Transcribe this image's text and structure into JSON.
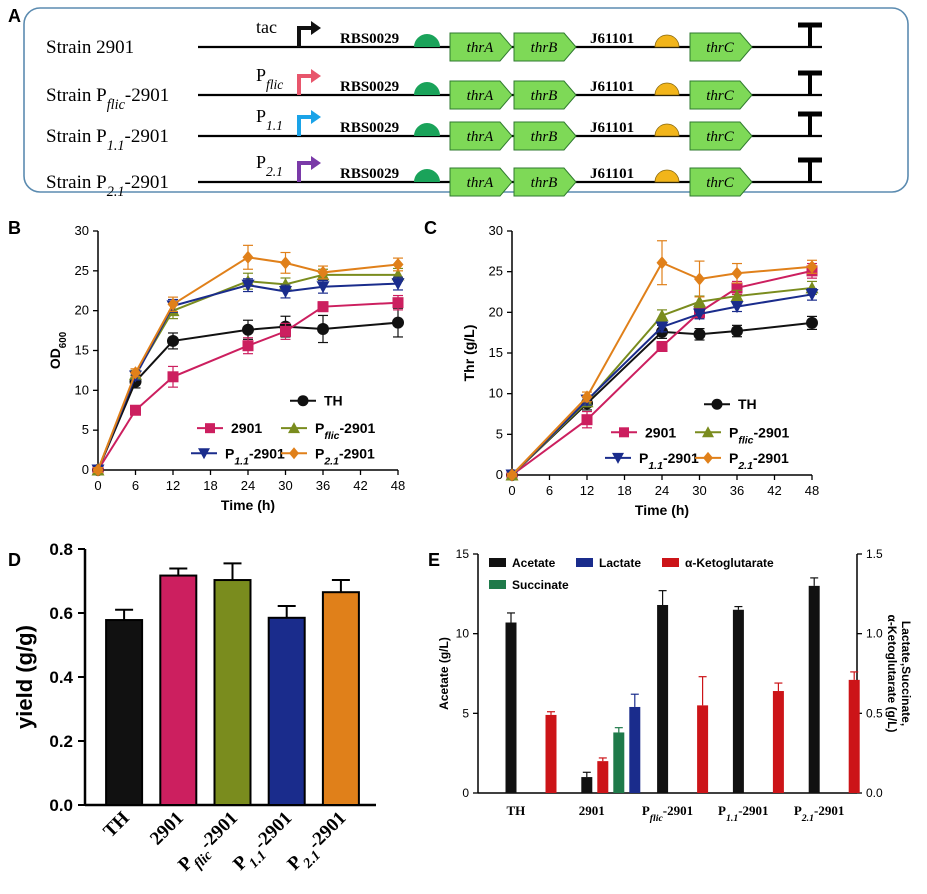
{
  "colors": {
    "TH": "#111111",
    "2901": "#cc1f5f",
    "Pflic": "#7a8c1e",
    "P11": "#1a2c8c",
    "P21": "#e0801a",
    "acetate": "#111111",
    "lactate": "#1a2c8c",
    "akg": "#cc1418",
    "succinate": "#1f7a4a",
    "rbs": "#1aa35a",
    "rbs2": "#f2b51a",
    "gene": "#7ed957",
    "tac": "#111111",
    "pflic_arrow": "#e8566c",
    "p11_arrow": "#1aa3e8",
    "p21_arrow": "#7a3aa8",
    "panel_border": "#5b8bb0"
  },
  "panelA": {
    "label": "A",
    "strains": [
      {
        "pre": "Strain ",
        "sub": "",
        "post": "2901",
        "promoter": "tac",
        "promoter_sub": "",
        "arrow": "tac"
      },
      {
        "pre": "Strain P",
        "sub": "flic",
        "post": "-2901",
        "promoter": "P",
        "promoter_sub": "flic",
        "arrow": "pflic_arrow"
      },
      {
        "pre": "Strain P",
        "sub": "1.1",
        "post": "-2901",
        "promoter": "P",
        "promoter_sub": "1.1",
        "arrow": "p11_arrow"
      },
      {
        "pre": "Strain P",
        "sub": "2.1",
        "post": "-2901",
        "promoter": "P",
        "promoter_sub": "2.1",
        "arrow": "p21_arrow"
      }
    ],
    "rbs1": "RBS0029",
    "rbs2": "J61101",
    "genes": [
      "thrA",
      "thrB",
      "thrC"
    ]
  },
  "chart_data": [
    {
      "panel": "B",
      "type": "line",
      "xlabel": "Time (h)",
      "ylabel": "OD",
      "ylabel_sub": "600",
      "x": [
        0,
        6,
        12,
        24,
        30,
        36,
        48
      ],
      "xticks": [
        0,
        6,
        12,
        18,
        24,
        30,
        36,
        42,
        48
      ],
      "yticks": [
        0,
        5,
        10,
        15,
        20,
        25,
        30
      ],
      "xlim": [
        0,
        48
      ],
      "ylim": [
        0,
        30
      ],
      "legend_position": "bottom-right",
      "series": [
        {
          "key": "TH",
          "name": "TH",
          "marker": "circle",
          "values": [
            0,
            11.1,
            16.2,
            17.6,
            18.0,
            17.7,
            18.5
          ],
          "errors": [
            0.3,
            0.8,
            1.0,
            1.2,
            1.3,
            1.7,
            1.8
          ]
        },
        {
          "key": "2901",
          "name": "2901",
          "marker": "square",
          "values": [
            0,
            7.5,
            11.7,
            15.6,
            17.4,
            20.5,
            21.0
          ],
          "errors": [
            0.3,
            0.5,
            1.3,
            1.0,
            1.0,
            0.6,
            0.9
          ]
        },
        {
          "key": "Pflic",
          "name": "P",
          "name_sub": "flic",
          "name_post": "-2901",
          "marker": "triangle-up",
          "values": [
            0,
            12.0,
            20.0,
            23.7,
            23.3,
            24.5,
            24.5
          ],
          "errors": [
            0.3,
            0.5,
            1.0,
            1.0,
            0.8,
            0.7,
            0.8
          ]
        },
        {
          "key": "P11",
          "name": "P",
          "name_sub": "1.1",
          "name_post": "-2901",
          "marker": "triangle-down",
          "values": [
            0,
            11.8,
            20.6,
            23.2,
            22.4,
            23.0,
            23.4
          ],
          "errors": [
            0.3,
            0.5,
            0.8,
            0.8,
            0.8,
            0.8,
            0.8
          ]
        },
        {
          "key": "P21",
          "name": "P",
          "name_sub": "2.1",
          "name_post": "-2901",
          "marker": "diamond",
          "values": [
            0,
            12.2,
            20.8,
            26.7,
            26.0,
            24.8,
            25.8
          ],
          "errors": [
            0.3,
            0.5,
            0.9,
            1.5,
            1.3,
            0.8,
            0.8
          ]
        }
      ]
    },
    {
      "panel": "C",
      "type": "line",
      "xlabel": "Time (h)",
      "ylabel": "Thr (g/L)",
      "x": [
        0,
        12,
        24,
        30,
        36,
        48
      ],
      "xticks": [
        0,
        6,
        12,
        18,
        24,
        30,
        36,
        42,
        48
      ],
      "yticks": [
        0,
        5,
        10,
        15,
        20,
        25,
        30
      ],
      "xlim": [
        0,
        48
      ],
      "ylim": [
        0,
        30
      ],
      "legend_position": "bottom-right",
      "series": [
        {
          "key": "TH",
          "name": "TH",
          "marker": "circle",
          "values": [
            0,
            8.8,
            17.6,
            17.3,
            17.7,
            18.7
          ],
          "errors": [
            0.2,
            0.8,
            0.8,
            0.7,
            0.7,
            0.8
          ]
        },
        {
          "key": "2901",
          "name": "2901",
          "marker": "square",
          "values": [
            0,
            6.8,
            15.8,
            20.0,
            23.0,
            25.1
          ],
          "errors": [
            0.2,
            1.0,
            0.6,
            0.7,
            0.8,
            0.9
          ]
        },
        {
          "key": "Pflic",
          "name": "P",
          "name_sub": "flic",
          "name_post": "-2901",
          "marker": "triangle-up",
          "values": [
            0,
            9.0,
            19.6,
            21.3,
            22.0,
            23.0
          ],
          "errors": [
            0.2,
            0.6,
            0.7,
            0.7,
            0.7,
            0.8
          ]
        },
        {
          "key": "P11",
          "name": "P",
          "name_sub": "1.1",
          "name_post": "-2901",
          "marker": "triangle-down",
          "values": [
            0,
            9.2,
            18.2,
            19.8,
            20.7,
            22.2
          ],
          "errors": [
            0.2,
            0.6,
            0.6,
            0.6,
            0.6,
            0.7
          ]
        },
        {
          "key": "P21",
          "name": "P",
          "name_sub": "2.1",
          "name_post": "-2901",
          "marker": "diamond",
          "values": [
            0,
            9.6,
            26.1,
            24.1,
            24.8,
            25.6
          ],
          "errors": [
            0.2,
            0.6,
            2.7,
            2.2,
            1.2,
            0.8
          ]
        }
      ]
    },
    {
      "panel": "D",
      "type": "bar",
      "ylabel": "yield (g/g)",
      "categories": [
        {
          "pre": "TH",
          "sub": "",
          "post": ""
        },
        {
          "pre": "2901",
          "sub": "",
          "post": ""
        },
        {
          "pre": "P",
          "sub": "flic",
          "post": "-2901"
        },
        {
          "pre": "P",
          "sub": "1.1",
          "post": "-2901"
        },
        {
          "pre": "P",
          "sub": "2.1",
          "post": "-2901"
        }
      ],
      "values": [
        0.578,
        0.717,
        0.703,
        0.585,
        0.665
      ],
      "errors": [
        0.032,
        0.022,
        0.052,
        0.037,
        0.038
      ],
      "bar_colors": [
        "TH",
        "2901",
        "Pflic",
        "P11",
        "P21"
      ],
      "yticks": [
        "0.0",
        "0.2",
        "0.4",
        "0.6",
        "0.8"
      ],
      "ylim": [
        0,
        0.8
      ]
    },
    {
      "panel": "E",
      "type": "bar",
      "ylabel_left": "Acetate (g/L)",
      "ylabel_right_1": "Lactate,Succinate,",
      "ylabel_right_2": "α-Ketoglutarate (g/L)",
      "categories": [
        {
          "pre": "TH",
          "sub": "",
          "post": ""
        },
        {
          "pre": "2901",
          "sub": "",
          "post": ""
        },
        {
          "pre": "P",
          "sub": "flic",
          "post": "-2901"
        },
        {
          "pre": "P",
          "sub": "1.1",
          "post": "-2901"
        },
        {
          "pre": "P",
          "sub": "2.1",
          "post": "-2901"
        }
      ],
      "yticks_left": [
        0,
        5,
        10,
        15
      ],
      "yticks_right": [
        "0.0",
        "0.5",
        "1.0",
        "1.5"
      ],
      "ylim_left": [
        0,
        15
      ],
      "ylim_right": [
        0,
        1.5
      ],
      "legend_position": "top-left",
      "series": [
        {
          "key": "acetate",
          "name": "Acetate",
          "axis": "left",
          "values": [
            10.7,
            1.0,
            11.8,
            11.5,
            13.0
          ],
          "errors": [
            0.6,
            0.3,
            0.9,
            0.2,
            0.5
          ]
        },
        {
          "key": "akg",
          "name": "α-Ketoglutarate",
          "axis": "right",
          "values": [
            0.49,
            0.2,
            0.55,
            0.64,
            0.71
          ],
          "errors": [
            0.02,
            0.02,
            0.18,
            0.05,
            0.05
          ]
        },
        {
          "key": "succinate",
          "name": "Succinate",
          "axis": "right",
          "values": [
            null,
            0.38,
            null,
            null,
            null
          ],
          "errors": [
            null,
            0.03,
            null,
            null,
            null
          ]
        },
        {
          "key": "lactate",
          "name": "Lactate",
          "axis": "right",
          "values": [
            null,
            0.54,
            null,
            null,
            null
          ],
          "errors": [
            null,
            0.08,
            null,
            null,
            null
          ]
        }
      ]
    }
  ]
}
